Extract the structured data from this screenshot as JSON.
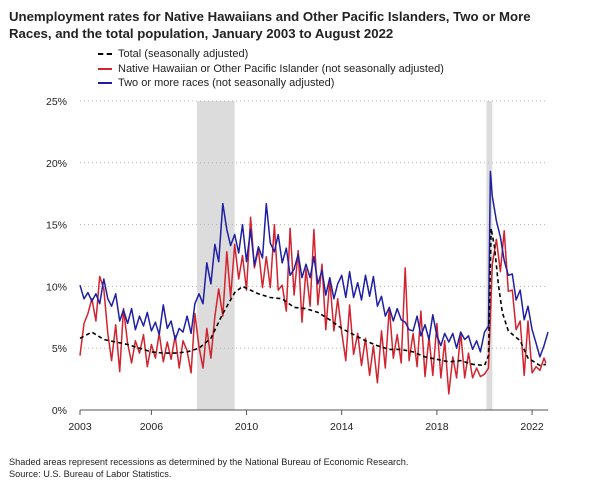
{
  "title": "Unemployment rates for Native Hawaiians and Other Pacific Islanders, Two or More Races, and the total population, January 2003 to August 2022",
  "footer": {
    "note": "Shaded areas represent recessions as determined by the National Bureau of Economic Research.",
    "source": "Source: U.S. Bureau of Labor Statistics."
  },
  "chart_data": {
    "type": "line",
    "xlim": [
      2003.0,
      2022.67
    ],
    "ylim": [
      0,
      25
    ],
    "x_ticks": [
      2003,
      2006,
      2010,
      2014,
      2018,
      2022
    ],
    "x_tick_labels": [
      "2003",
      "2006",
      "2010",
      "2014",
      "2018",
      "2022"
    ],
    "y_ticks": [
      0,
      5,
      10,
      15,
      20,
      25
    ],
    "y_tick_labels": [
      "0%",
      "5%",
      "10%",
      "15%",
      "20%",
      "25%"
    ],
    "grid": "horizontal-dotted",
    "legend_position": "top-left",
    "recessions": [
      {
        "start": 2007.92,
        "end": 2009.5
      },
      {
        "start": 2020.08,
        "end": 2020.33
      }
    ],
    "series": [
      {
        "name": "Total (seasonally adjusted)",
        "color": "#000000",
        "style": "dashed",
        "points": [
          [
            2003.0,
            5.8
          ],
          [
            2003.5,
            6.3
          ],
          [
            2004.0,
            5.7
          ],
          [
            2004.5,
            5.5
          ],
          [
            2005.0,
            5.3
          ],
          [
            2005.5,
            5.0
          ],
          [
            2006.0,
            4.7
          ],
          [
            2006.5,
            4.6
          ],
          [
            2007.0,
            4.6
          ],
          [
            2007.5,
            4.7
          ],
          [
            2008.0,
            5.0
          ],
          [
            2008.5,
            5.8
          ],
          [
            2009.0,
            7.8
          ],
          [
            2009.5,
            9.5
          ],
          [
            2009.83,
            10.0
          ],
          [
            2010.5,
            9.4
          ],
          [
            2011.0,
            9.1
          ],
          [
            2011.5,
            9.0
          ],
          [
            2012.0,
            8.3
          ],
          [
            2012.5,
            8.2
          ],
          [
            2013.0,
            7.9
          ],
          [
            2013.5,
            7.3
          ],
          [
            2014.0,
            6.6
          ],
          [
            2014.5,
            6.1
          ],
          [
            2015.0,
            5.6
          ],
          [
            2015.5,
            5.2
          ],
          [
            2016.0,
            4.9
          ],
          [
            2016.5,
            4.9
          ],
          [
            2017.0,
            4.7
          ],
          [
            2017.5,
            4.3
          ],
          [
            2018.0,
            4.1
          ],
          [
            2018.5,
            3.9
          ],
          [
            2019.0,
            4.0
          ],
          [
            2019.5,
            3.7
          ],
          [
            2020.0,
            3.6
          ],
          [
            2020.17,
            4.4
          ],
          [
            2020.28,
            14.7
          ],
          [
            2020.42,
            13.2
          ],
          [
            2020.58,
            10.2
          ],
          [
            2020.75,
            7.9
          ],
          [
            2021.0,
            6.4
          ],
          [
            2021.5,
            5.6
          ],
          [
            2021.83,
            4.2
          ],
          [
            2022.0,
            4.0
          ],
          [
            2022.33,
            3.6
          ],
          [
            2022.58,
            3.7
          ]
        ]
      },
      {
        "name": "Native Hawaiian or Other Pacific Islander (not seasonally adjusted)",
        "color": "#d1242f",
        "style": "solid",
        "points": [
          [
            2003.0,
            4.4
          ],
          [
            2003.17,
            7.0
          ],
          [
            2003.33,
            7.8
          ],
          [
            2003.5,
            9.0
          ],
          [
            2003.67,
            7.2
          ],
          [
            2003.83,
            10.8
          ],
          [
            2004.0,
            9.8
          ],
          [
            2004.17,
            6.2
          ],
          [
            2004.33,
            4.0
          ],
          [
            2004.5,
            6.9
          ],
          [
            2004.67,
            3.1
          ],
          [
            2004.83,
            8.2
          ],
          [
            2005.0,
            5.4
          ],
          [
            2005.17,
            3.8
          ],
          [
            2005.33,
            5.6
          ],
          [
            2005.5,
            4.6
          ],
          [
            2005.67,
            6.1
          ],
          [
            2005.83,
            3.5
          ],
          [
            2006.0,
            5.3
          ],
          [
            2006.17,
            4.2
          ],
          [
            2006.33,
            6.2
          ],
          [
            2006.5,
            3.9
          ],
          [
            2006.67,
            5.5
          ],
          [
            2006.83,
            4.1
          ],
          [
            2007.0,
            6.0
          ],
          [
            2007.17,
            3.4
          ],
          [
            2007.33,
            5.6
          ],
          [
            2007.5,
            4.8
          ],
          [
            2007.67,
            3.0
          ],
          [
            2007.83,
            7.8
          ],
          [
            2008.0,
            5.1
          ],
          [
            2008.17,
            3.4
          ],
          [
            2008.33,
            6.6
          ],
          [
            2008.5,
            4.2
          ],
          [
            2008.67,
            7.6
          ],
          [
            2008.83,
            9.8
          ],
          [
            2009.0,
            7.6
          ],
          [
            2009.17,
            12.8
          ],
          [
            2009.33,
            9.1
          ],
          [
            2009.5,
            13.4
          ],
          [
            2009.67,
            10.6
          ],
          [
            2009.83,
            12.5
          ],
          [
            2010.0,
            9.7
          ],
          [
            2010.17,
            15.6
          ],
          [
            2010.33,
            11.5
          ],
          [
            2010.5,
            13.0
          ],
          [
            2010.67,
            9.9
          ],
          [
            2010.83,
            12.4
          ],
          [
            2011.0,
            9.9
          ],
          [
            2011.17,
            15.0
          ],
          [
            2011.33,
            9.7
          ],
          [
            2011.5,
            10.1
          ],
          [
            2011.67,
            8.0
          ],
          [
            2011.83,
            14.7
          ],
          [
            2012.0,
            9.3
          ],
          [
            2012.17,
            12.9
          ],
          [
            2012.33,
            7.1
          ],
          [
            2012.5,
            11.4
          ],
          [
            2012.67,
            8.4
          ],
          [
            2012.83,
            14.6
          ],
          [
            2013.0,
            8.5
          ],
          [
            2013.17,
            11.8
          ],
          [
            2013.33,
            6.5
          ],
          [
            2013.5,
            10.5
          ],
          [
            2013.67,
            6.4
          ],
          [
            2013.83,
            9.0
          ],
          [
            2014.0,
            6.3
          ],
          [
            2014.17,
            4.0
          ],
          [
            2014.33,
            8.5
          ],
          [
            2014.5,
            4.5
          ],
          [
            2014.67,
            6.2
          ],
          [
            2014.83,
            3.6
          ],
          [
            2015.0,
            5.8
          ],
          [
            2015.17,
            2.8
          ],
          [
            2015.33,
            5.2
          ],
          [
            2015.5,
            2.2
          ],
          [
            2015.67,
            6.4
          ],
          [
            2015.83,
            3.4
          ],
          [
            2016.0,
            8.3
          ],
          [
            2016.17,
            4.2
          ],
          [
            2016.33,
            6.1
          ],
          [
            2016.5,
            3.8
          ],
          [
            2016.67,
            11.5
          ],
          [
            2016.83,
            4.0
          ],
          [
            2017.0,
            6.2
          ],
          [
            2017.17,
            3.5
          ],
          [
            2017.33,
            8.0
          ],
          [
            2017.5,
            2.7
          ],
          [
            2017.67,
            5.9
          ],
          [
            2017.83,
            2.8
          ],
          [
            2018.0,
            7.0
          ],
          [
            2018.17,
            2.6
          ],
          [
            2018.33,
            5.6
          ],
          [
            2018.5,
            1.3
          ],
          [
            2018.67,
            4.3
          ],
          [
            2018.83,
            2.6
          ],
          [
            2019.0,
            6.3
          ],
          [
            2019.17,
            2.6
          ],
          [
            2019.33,
            4.6
          ],
          [
            2019.5,
            2.6
          ],
          [
            2019.67,
            3.4
          ],
          [
            2019.83,
            2.7
          ],
          [
            2020.0,
            2.9
          ],
          [
            2020.17,
            3.4
          ],
          [
            2020.33,
            11.8
          ],
          [
            2020.5,
            13.8
          ],
          [
            2020.67,
            11.2
          ],
          [
            2020.83,
            14.5
          ],
          [
            2021.0,
            9.6
          ],
          [
            2021.17,
            9.7
          ],
          [
            2021.33,
            6.5
          ],
          [
            2021.5,
            7.2
          ],
          [
            2021.67,
            2.8
          ],
          [
            2021.83,
            7.2
          ],
          [
            2022.0,
            3.0
          ],
          [
            2022.17,
            3.5
          ],
          [
            2022.33,
            3.2
          ],
          [
            2022.5,
            4.2
          ],
          [
            2022.58,
            3.8
          ]
        ]
      },
      {
        "name": "Two or more races (not seasonally adjusted)",
        "color": "#1f1fa3",
        "style": "solid",
        "points": [
          [
            2003.0,
            10.1
          ],
          [
            2003.17,
            9.0
          ],
          [
            2003.33,
            9.5
          ],
          [
            2003.5,
            8.8
          ],
          [
            2003.67,
            9.4
          ],
          [
            2003.83,
            8.6
          ],
          [
            2004.0,
            10.6
          ],
          [
            2004.17,
            9.0
          ],
          [
            2004.33,
            8.4
          ],
          [
            2004.5,
            9.4
          ],
          [
            2004.67,
            7.2
          ],
          [
            2004.83,
            8.1
          ],
          [
            2005.0,
            7.0
          ],
          [
            2005.17,
            8.2
          ],
          [
            2005.33,
            6.5
          ],
          [
            2005.5,
            7.6
          ],
          [
            2005.67,
            6.8
          ],
          [
            2005.83,
            7.9
          ],
          [
            2006.0,
            6.4
          ],
          [
            2006.17,
            7.1
          ],
          [
            2006.33,
            6.1
          ],
          [
            2006.5,
            8.5
          ],
          [
            2006.67,
            6.6
          ],
          [
            2006.83,
            7.2
          ],
          [
            2007.0,
            5.7
          ],
          [
            2007.17,
            6.6
          ],
          [
            2007.33,
            6.3
          ],
          [
            2007.5,
            7.6
          ],
          [
            2007.67,
            6.2
          ],
          [
            2007.83,
            8.6
          ],
          [
            2008.0,
            9.4
          ],
          [
            2008.17,
            8.6
          ],
          [
            2008.33,
            11.9
          ],
          [
            2008.5,
            10.2
          ],
          [
            2008.67,
            13.4
          ],
          [
            2008.83,
            12.0
          ],
          [
            2009.0,
            16.7
          ],
          [
            2009.17,
            14.6
          ],
          [
            2009.33,
            13.3
          ],
          [
            2009.5,
            14.2
          ],
          [
            2009.67,
            12.7
          ],
          [
            2009.83,
            15.0
          ],
          [
            2010.0,
            12.0
          ],
          [
            2010.17,
            14.6
          ],
          [
            2010.33,
            11.7
          ],
          [
            2010.5,
            13.2
          ],
          [
            2010.67,
            12.3
          ],
          [
            2010.83,
            16.7
          ],
          [
            2011.0,
            13.5
          ],
          [
            2011.17,
            12.8
          ],
          [
            2011.33,
            14.2
          ],
          [
            2011.5,
            11.9
          ],
          [
            2011.67,
            13.1
          ],
          [
            2011.83,
            10.9
          ],
          [
            2012.0,
            11.4
          ],
          [
            2012.17,
            12.6
          ],
          [
            2012.33,
            10.7
          ],
          [
            2012.5,
            11.8
          ],
          [
            2012.67,
            10.7
          ],
          [
            2012.83,
            12.4
          ],
          [
            2013.0,
            10.2
          ],
          [
            2013.17,
            11.3
          ],
          [
            2013.33,
            9.3
          ],
          [
            2013.5,
            10.7
          ],
          [
            2013.67,
            9.0
          ],
          [
            2013.83,
            10.2
          ],
          [
            2014.0,
            10.9
          ],
          [
            2014.17,
            9.1
          ],
          [
            2014.33,
            11.2
          ],
          [
            2014.5,
            9.1
          ],
          [
            2014.67,
            10.3
          ],
          [
            2014.83,
            8.9
          ],
          [
            2015.0,
            10.9
          ],
          [
            2015.17,
            9.2
          ],
          [
            2015.33,
            10.8
          ],
          [
            2015.5,
            8.4
          ],
          [
            2015.67,
            9.2
          ],
          [
            2015.83,
            7.6
          ],
          [
            2016.0,
            8.3
          ],
          [
            2016.17,
            7.2
          ],
          [
            2016.33,
            8.2
          ],
          [
            2016.5,
            7.3
          ],
          [
            2016.67,
            7.1
          ],
          [
            2016.83,
            6.5
          ],
          [
            2017.0,
            6.4
          ],
          [
            2017.17,
            7.6
          ],
          [
            2017.33,
            6.0
          ],
          [
            2017.5,
            6.9
          ],
          [
            2017.67,
            5.7
          ],
          [
            2017.83,
            7.7
          ],
          [
            2018.0,
            6.0
          ],
          [
            2018.17,
            5.2
          ],
          [
            2018.33,
            6.2
          ],
          [
            2018.5,
            5.5
          ],
          [
            2018.67,
            6.2
          ],
          [
            2018.83,
            5.0
          ],
          [
            2019.0,
            6.3
          ],
          [
            2019.17,
            5.7
          ],
          [
            2019.33,
            6.0
          ],
          [
            2019.5,
            4.9
          ],
          [
            2019.67,
            5.6
          ],
          [
            2019.83,
            4.7
          ],
          [
            2020.0,
            6.3
          ],
          [
            2020.17,
            6.8
          ],
          [
            2020.25,
            19.3
          ],
          [
            2020.33,
            17.3
          ],
          [
            2020.5,
            15.3
          ],
          [
            2020.67,
            14.0
          ],
          [
            2020.83,
            12.1
          ],
          [
            2021.0,
            10.9
          ],
          [
            2021.17,
            11.0
          ],
          [
            2021.33,
            8.9
          ],
          [
            2021.5,
            9.7
          ],
          [
            2021.67,
            7.3
          ],
          [
            2021.83,
            8.4
          ],
          [
            2022.0,
            6.5
          ],
          [
            2022.17,
            5.4
          ],
          [
            2022.33,
            4.3
          ],
          [
            2022.5,
            5.2
          ],
          [
            2022.67,
            6.3
          ]
        ]
      }
    ]
  }
}
